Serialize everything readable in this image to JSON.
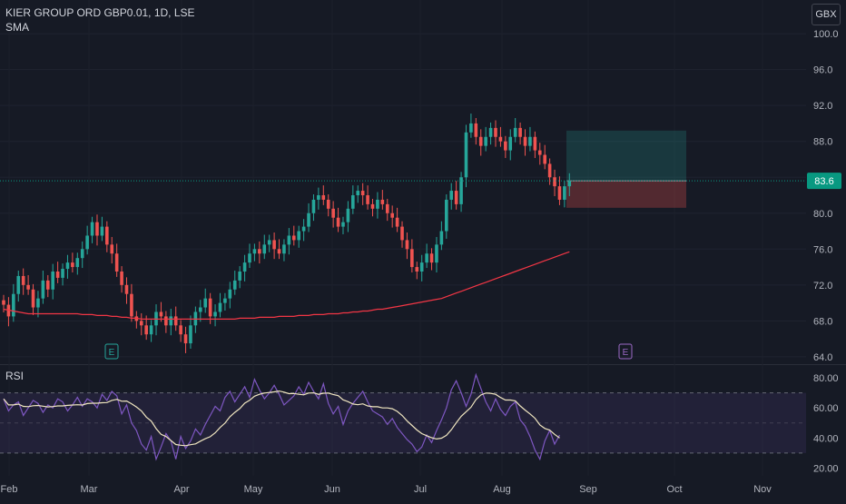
{
  "legend": {
    "symbol_line": "KIER GROUP ORD GBP0.01, 1D, LSE",
    "indicator_line": "SMA"
  },
  "currency_button": "GBX",
  "rsi_label": "RSI",
  "colors": {
    "background": "#161a25",
    "up": "#26a69a",
    "down": "#ef5350",
    "sma": "#f23645",
    "rsi_line": "#7e57c2",
    "rsi_ma": "#f0e6c0",
    "rsi_band": "rgba(126,87,194,0.12)",
    "last_price_tag": "#089981",
    "target_zone": "rgba(38,166,154,0.22)",
    "stop_zone": "rgba(239,83,80,0.28)",
    "earnings_past": "#26a69a",
    "earnings_future": "#9c6ac7"
  },
  "chart_data": [
    {
      "type": "candlestick",
      "title": "KIER GROUP ORD GBP0.01, 1D, LSE",
      "indicator": "SMA",
      "y_ticks": [
        "100.0",
        "96.0",
        "92.0",
        "88.0",
        "84.0",
        "80.0",
        "76.0",
        "72.0",
        "68.0",
        "64.0"
      ],
      "ylim": [
        63.2,
        101.6
      ],
      "x_ticks": [
        "Feb",
        "Mar",
        "Apr",
        "May",
        "Jun",
        "Jul",
        "Aug",
        "Sep",
        "Oct",
        "Nov"
      ],
      "last_price": "83.6",
      "closes": [
        69.8,
        68.5,
        71.0,
        73.0,
        72.0,
        71.5,
        69.5,
        70.5,
        72.5,
        71.5,
        73.5,
        72.8,
        73.8,
        74.5,
        74.0,
        75.0,
        76.0,
        77.5,
        79.0,
        77.5,
        78.5,
        76.5,
        75.5,
        73.5,
        72.0,
        71.0,
        68.5,
        68.0,
        67.5,
        66.5,
        67.5,
        69.0,
        68.5,
        67.5,
        68.5,
        67.5,
        66.5,
        65.5,
        67.5,
        69.0,
        69.5,
        70.5,
        68.5,
        69.0,
        70.0,
        70.5,
        71.5,
        72.5,
        73.5,
        74.5,
        75.5,
        76.0,
        75.5,
        76.5,
        77.0,
        76.0,
        75.5,
        76.5,
        77.5,
        77.0,
        78.0,
        78.5,
        80.0,
        81.5,
        82.0,
        81.5,
        80.5,
        79.5,
        78.5,
        79.0,
        80.5,
        82.0,
        82.5,
        82.0,
        81.0,
        80.5,
        81.5,
        81.0,
        80.0,
        79.5,
        78.5,
        77.0,
        76.0,
        74.0,
        73.5,
        74.5,
        75.5,
        74.5,
        76.5,
        78.0,
        81.5,
        82.5,
        81.0,
        84.0,
        89.0,
        90.0,
        88.5,
        87.5,
        88.5,
        89.5,
        88.5,
        88.0,
        87.0,
        88.5,
        89.5,
        88.5,
        87.5,
        88.5,
        87.0,
        86.5,
        85.5,
        84.0,
        83.0,
        81.5,
        83.0,
        83.6
      ],
      "sma": [
        69.3,
        69.2,
        69.1,
        69.0,
        68.9,
        68.8,
        68.8,
        68.8,
        68.8,
        68.8,
        68.8,
        68.8,
        68.8,
        68.8,
        68.8,
        68.8,
        68.7,
        68.7,
        68.7,
        68.6,
        68.6,
        68.6,
        68.5,
        68.5,
        68.4,
        68.4,
        68.3,
        68.3,
        68.2,
        68.2,
        68.2,
        68.2,
        68.2,
        68.2,
        68.2,
        68.2,
        68.2,
        68.2,
        68.2,
        68.2,
        68.2,
        68.2,
        68.2,
        68.2,
        68.2,
        68.2,
        68.2,
        68.2,
        68.3,
        68.3,
        68.3,
        68.3,
        68.4,
        68.4,
        68.4,
        68.4,
        68.5,
        68.5,
        68.5,
        68.5,
        68.6,
        68.6,
        68.6,
        68.7,
        68.7,
        68.7,
        68.8,
        68.8,
        68.8,
        68.9,
        68.9,
        69.0,
        69.0,
        69.1,
        69.1,
        69.2,
        69.3,
        69.3,
        69.4,
        69.5,
        69.6,
        69.7,
        69.8,
        69.9,
        70.0,
        70.1,
        70.2,
        70.3,
        70.4,
        70.5,
        70.7,
        70.9,
        71.1,
        71.3,
        71.5,
        71.7,
        71.9,
        72.1,
        72.3,
        72.5,
        72.7,
        72.9,
        73.1,
        73.3,
        73.5,
        73.7,
        73.9,
        74.1,
        74.3,
        74.5,
        74.7,
        74.9,
        75.1,
        75.3,
        75.5,
        75.7
      ],
      "earnings_markers": [
        "E",
        "E"
      ],
      "position_zone": {
        "entry": 83.6,
        "target": 89.2,
        "stop": 80.6
      }
    },
    {
      "type": "line",
      "title": "RSI",
      "y_ticks": [
        "80.00",
        "60.00",
        "40.00",
        "20.00"
      ],
      "ylim": [
        16,
        84
      ],
      "bands": [
        30,
        50,
        70
      ],
      "rsi": [
        66,
        58,
        62,
        64,
        55,
        60,
        65,
        63,
        57,
        62,
        60,
        66,
        64,
        58,
        62,
        67,
        61,
        66,
        64,
        60,
        69,
        65,
        71,
        68,
        56,
        62,
        50,
        45,
        36,
        32,
        41,
        26,
        34,
        43,
        38,
        26,
        41,
        33,
        38,
        46,
        42,
        49,
        55,
        61,
        58,
        67,
        71,
        64,
        69,
        74,
        67,
        79,
        72,
        66,
        70,
        75,
        69,
        62,
        65,
        68,
        74,
        69,
        77,
        71,
        66,
        76,
        63,
        56,
        61,
        49,
        58,
        63,
        67,
        71,
        64,
        58,
        56,
        54,
        49,
        53,
        47,
        43,
        39,
        36,
        31,
        34,
        42,
        37,
        45,
        52,
        60,
        72,
        78,
        70,
        61,
        69,
        82,
        73,
        64,
        58,
        66,
        59,
        55,
        61,
        64,
        52,
        48,
        41,
        32,
        26,
        38,
        45,
        36,
        42
      ]
    }
  ]
}
